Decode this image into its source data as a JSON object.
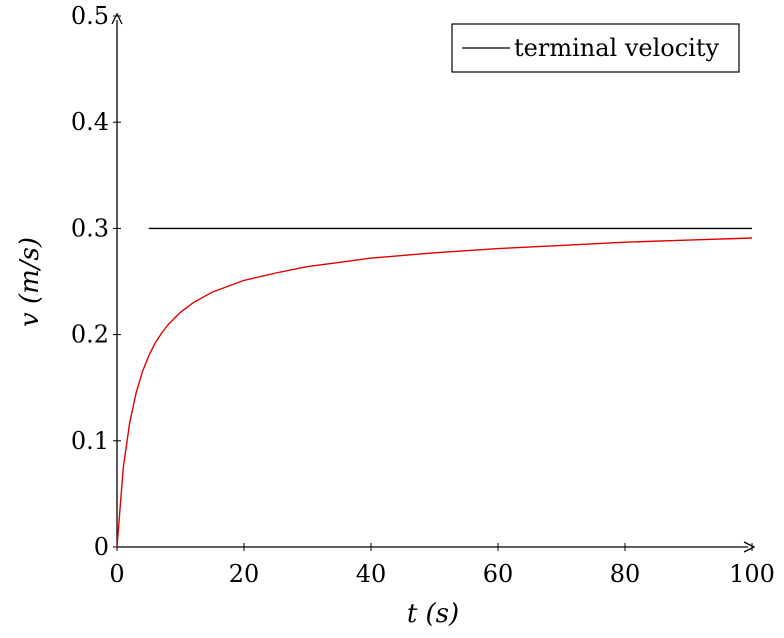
{
  "chart_data": {
    "type": "line",
    "xlabel": "t (s)",
    "ylabel": "v (m/s)",
    "xlim": [
      0,
      100
    ],
    "ylim": [
      0,
      0.5
    ],
    "x_ticks": [
      0,
      20,
      40,
      60,
      80,
      100
    ],
    "y_ticks": [
      0,
      0.1,
      0.2,
      0.3,
      0.4,
      0.5
    ],
    "x_tick_labels": [
      "0",
      "20",
      "40",
      "60",
      "80",
      "100"
    ],
    "y_tick_labels": [
      "0",
      "0.1",
      "0.2",
      "0.3",
      "0.4",
      "0.5"
    ],
    "grid": false,
    "legend_position": "top-right",
    "series": [
      {
        "name": "terminal velocity",
        "color": "#000000",
        "x": [
          5,
          100
        ],
        "y": [
          0.3,
          0.3
        ]
      },
      {
        "color": "#e00000",
        "x": [
          0,
          1,
          2,
          3,
          4,
          5,
          6,
          7,
          8,
          10,
          12,
          15,
          20,
          25,
          30,
          35,
          40,
          50,
          60,
          70,
          80,
          90,
          100
        ],
        "y": [
          0,
          0.075,
          0.117,
          0.145,
          0.165,
          0.18,
          0.192,
          0.201,
          0.209,
          0.221,
          0.23,
          0.24,
          0.251,
          0.258,
          0.264,
          0.268,
          0.272,
          0.277,
          0.281,
          0.284,
          0.287,
          0.289,
          0.291
        ]
      }
    ]
  }
}
